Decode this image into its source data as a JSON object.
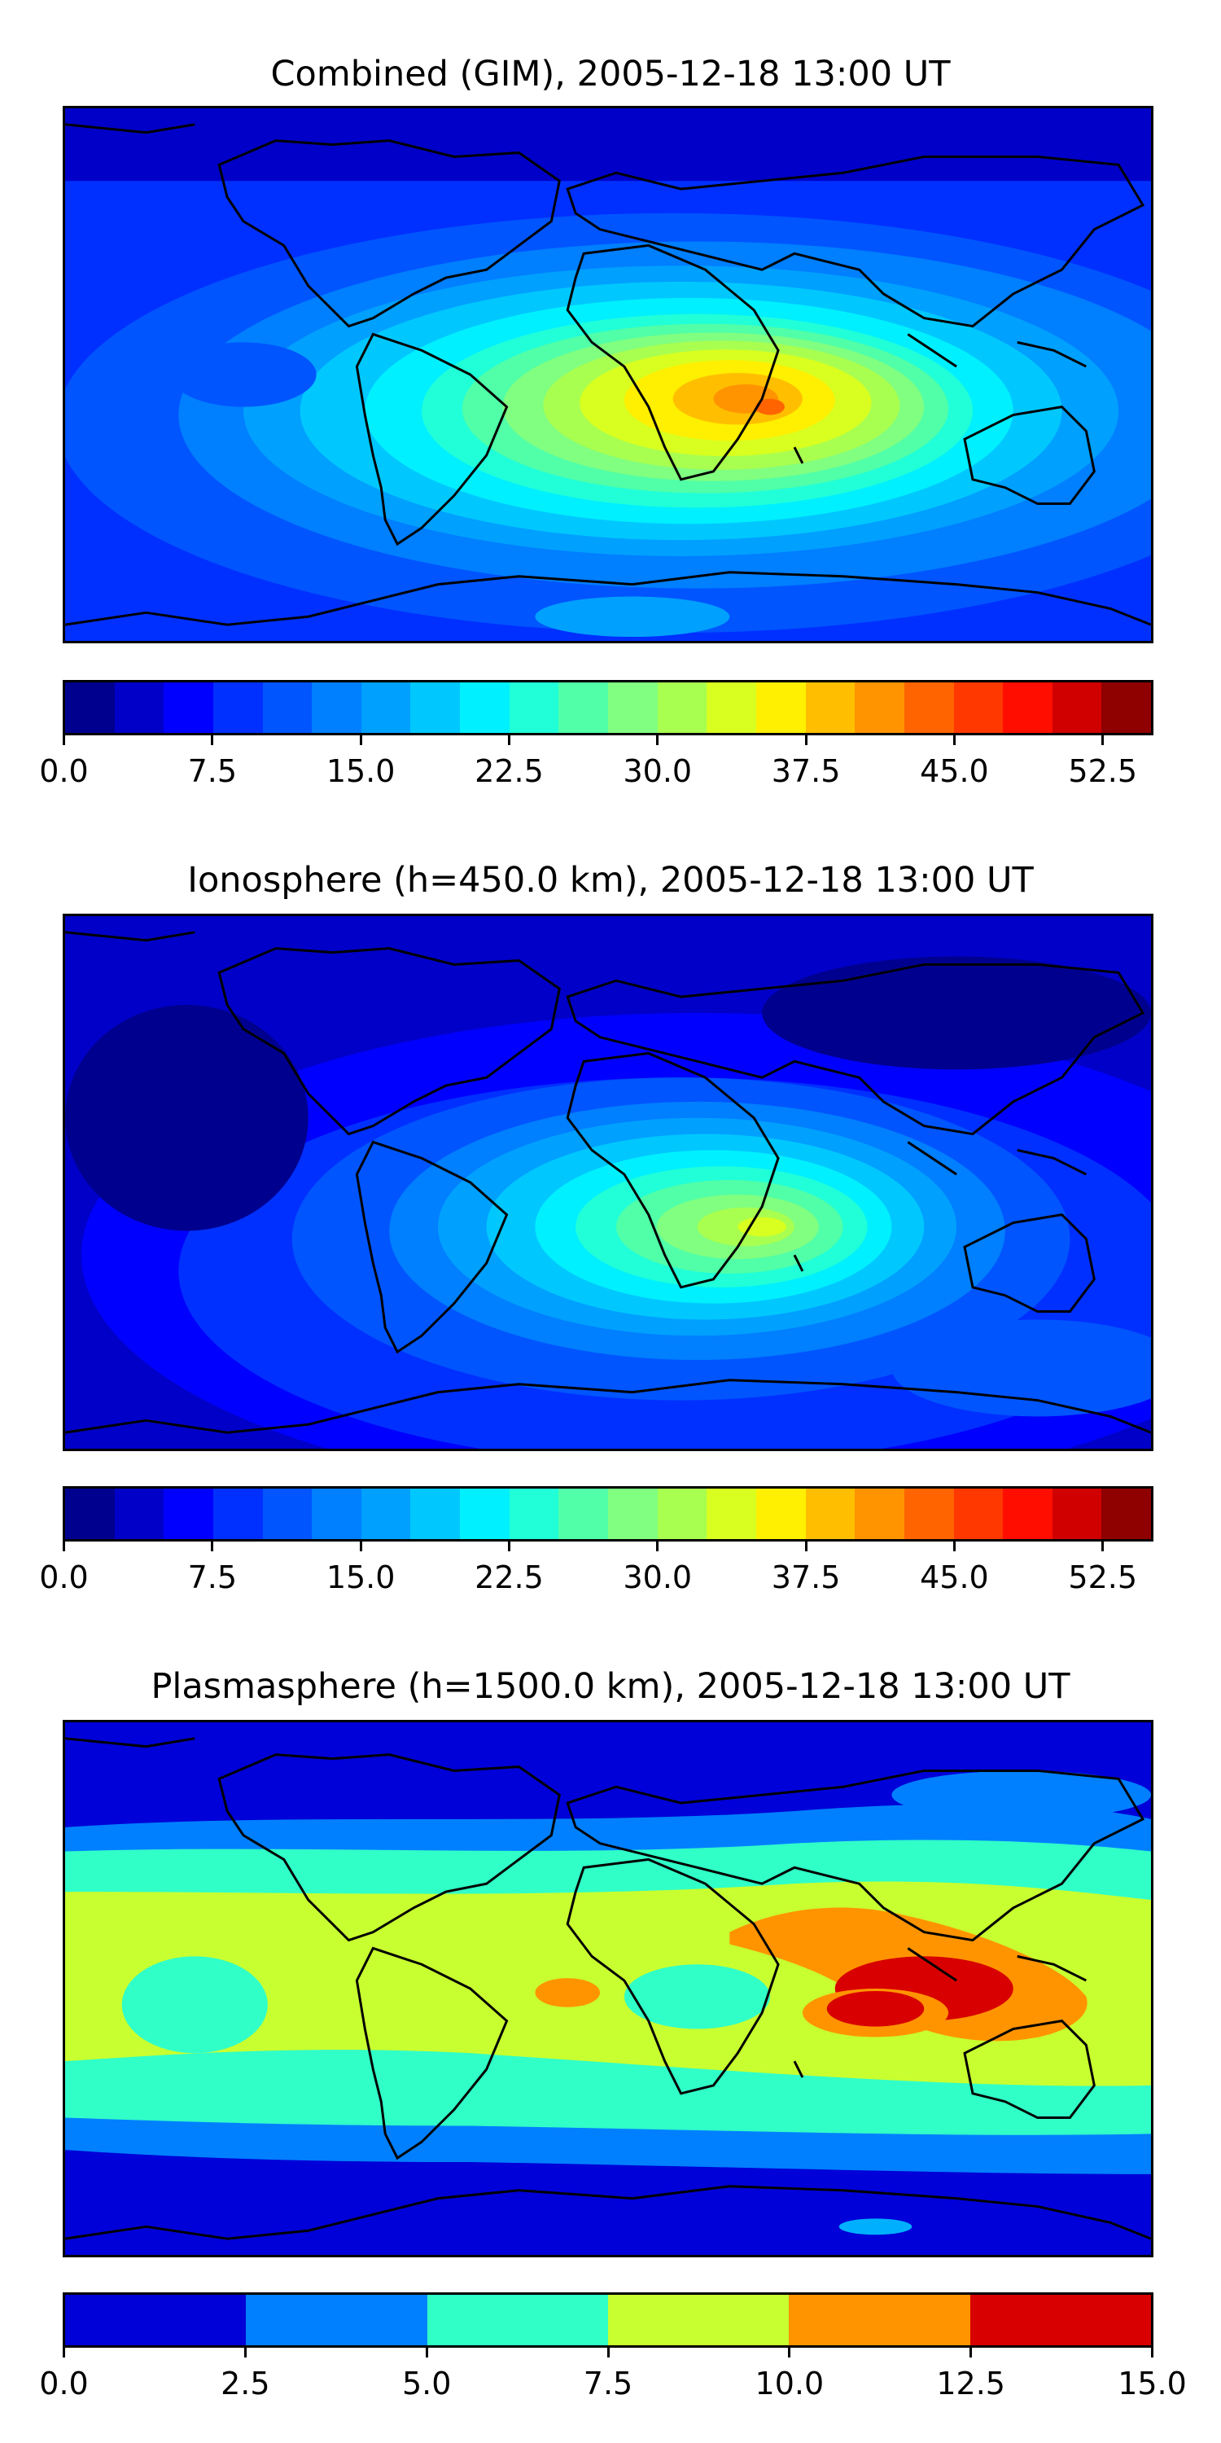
{
  "panels": [
    {
      "title": "Combined (GIM), 2005-12-18 13:00 UT",
      "colorbar": {
        "colors": [
          "#00008f",
          "#0000c8",
          "#0000ff",
          "#0030ff",
          "#0055ff",
          "#007fff",
          "#00a0ff",
          "#00c8ff",
          "#00f0ff",
          "#20ffd8",
          "#50ffa8",
          "#80ff80",
          "#a8ff50",
          "#d8ff20",
          "#ffef00",
          "#ffbf00",
          "#ff9400",
          "#ff6400",
          "#ff3800",
          "#ff0e00",
          "#d00000",
          "#8f0000"
        ],
        "ticks": [
          "0.0",
          "7.5",
          "15.0",
          "22.5",
          "30.0",
          "37.5",
          "45.0",
          "52.5"
        ],
        "tick_values": [
          0,
          7.5,
          15,
          22.5,
          30,
          37.5,
          45,
          52.5
        ],
        "range": [
          0,
          55
        ]
      }
    },
    {
      "title": "Ionosphere  (h=450.0 km), 2005-12-18 13:00 UT",
      "colorbar": {
        "colors": [
          "#00008f",
          "#0000c8",
          "#0000ff",
          "#0030ff",
          "#0055ff",
          "#007fff",
          "#00a0ff",
          "#00c8ff",
          "#00f0ff",
          "#20ffd8",
          "#50ffa8",
          "#80ff80",
          "#a8ff50",
          "#d8ff20",
          "#ffef00",
          "#ffbf00",
          "#ff9400",
          "#ff6400",
          "#ff3800",
          "#ff0e00",
          "#d00000",
          "#8f0000"
        ],
        "ticks": [
          "0.0",
          "7.5",
          "15.0",
          "22.5",
          "30.0",
          "37.5",
          "45.0",
          "52.5"
        ],
        "tick_values": [
          0,
          7.5,
          15,
          22.5,
          30,
          37.5,
          45,
          52.5
        ],
        "range": [
          0,
          55
        ]
      }
    },
    {
      "title": "Plasmasphere (h=1500.0 km), 2005-12-18 13:00 UT",
      "colorbar": {
        "colors": [
          "#0000d8",
          "#0080ff",
          "#30ffc8",
          "#c8ff30",
          "#ff9400",
          "#d80000"
        ],
        "ticks": [
          "0.0",
          "2.5",
          "5.0",
          "7.5",
          "10.0",
          "12.5",
          "15.0"
        ],
        "tick_values": [
          0,
          2.5,
          5,
          7.5,
          10,
          12.5,
          15
        ],
        "range": [
          0,
          15
        ]
      }
    }
  ]
}
